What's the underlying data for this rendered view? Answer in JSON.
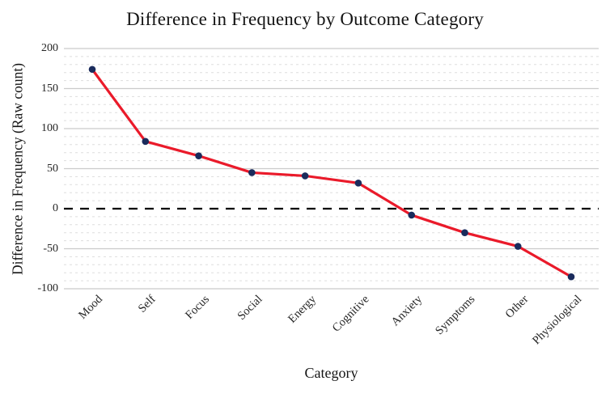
{
  "chart_data": {
    "type": "line",
    "title": "Difference in Frequency by Outcome Category",
    "xlabel": "Category",
    "ylabel": "Difference in Frequency (Raw count)",
    "categories": [
      "Mood",
      "Self",
      "Focus",
      "Social",
      "Energy",
      "Cognitive",
      "Anxiety",
      "Symptoms",
      "Other",
      "Physiological"
    ],
    "values": [
      174,
      84,
      66,
      45,
      41,
      32,
      -8,
      -30,
      -47,
      -85
    ],
    "ylim": [
      -100,
      200
    ],
    "yticks": [
      200,
      150,
      100,
      50,
      0,
      -50,
      -100
    ],
    "minor_grid_step": 10,
    "legend": "none",
    "grid": "major solid, minor dashed, horizontal only",
    "zero_reference_line": "dashed black at y=0",
    "colors": {
      "line": "#ea1a2a",
      "marker": "#1a2b5c",
      "grid_major": "#cbcbcb",
      "grid_minor": "#dddddd",
      "zero_line": "#000000",
      "text": "#141414"
    }
  }
}
